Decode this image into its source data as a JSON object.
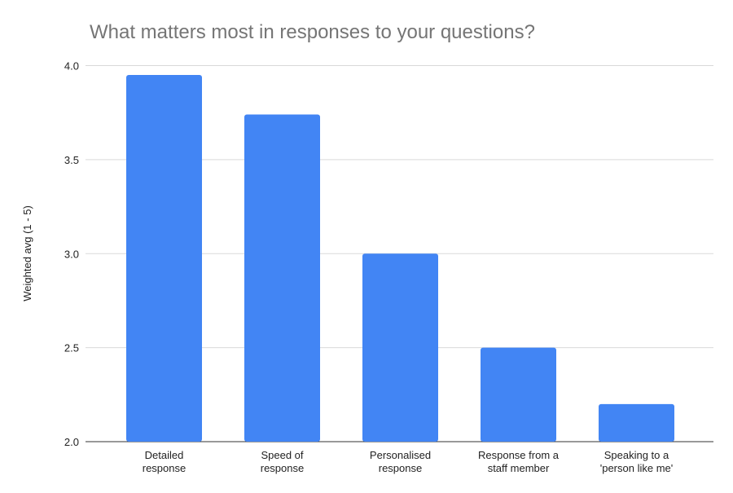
{
  "chart_data": {
    "type": "bar",
    "title": "What matters most in responses to your questions?",
    "xlabel": "",
    "ylabel": "Weighted avg (1 - 5)",
    "ylim": [
      2.0,
      4.0
    ],
    "yticks": [
      "2.0",
      "2.5",
      "3.0",
      "3.5",
      "4.0"
    ],
    "grid": true,
    "categories": [
      [
        "Detailed",
        "response"
      ],
      [
        "Speed of",
        "response"
      ],
      [
        "Personalised",
        "response"
      ],
      [
        "Response from a",
        "staff member"
      ],
      [
        "Speaking to a",
        "'person like me'"
      ]
    ],
    "values": [
      3.95,
      3.74,
      3.0,
      2.5,
      2.2
    ],
    "bar_color": "#4285f4"
  }
}
